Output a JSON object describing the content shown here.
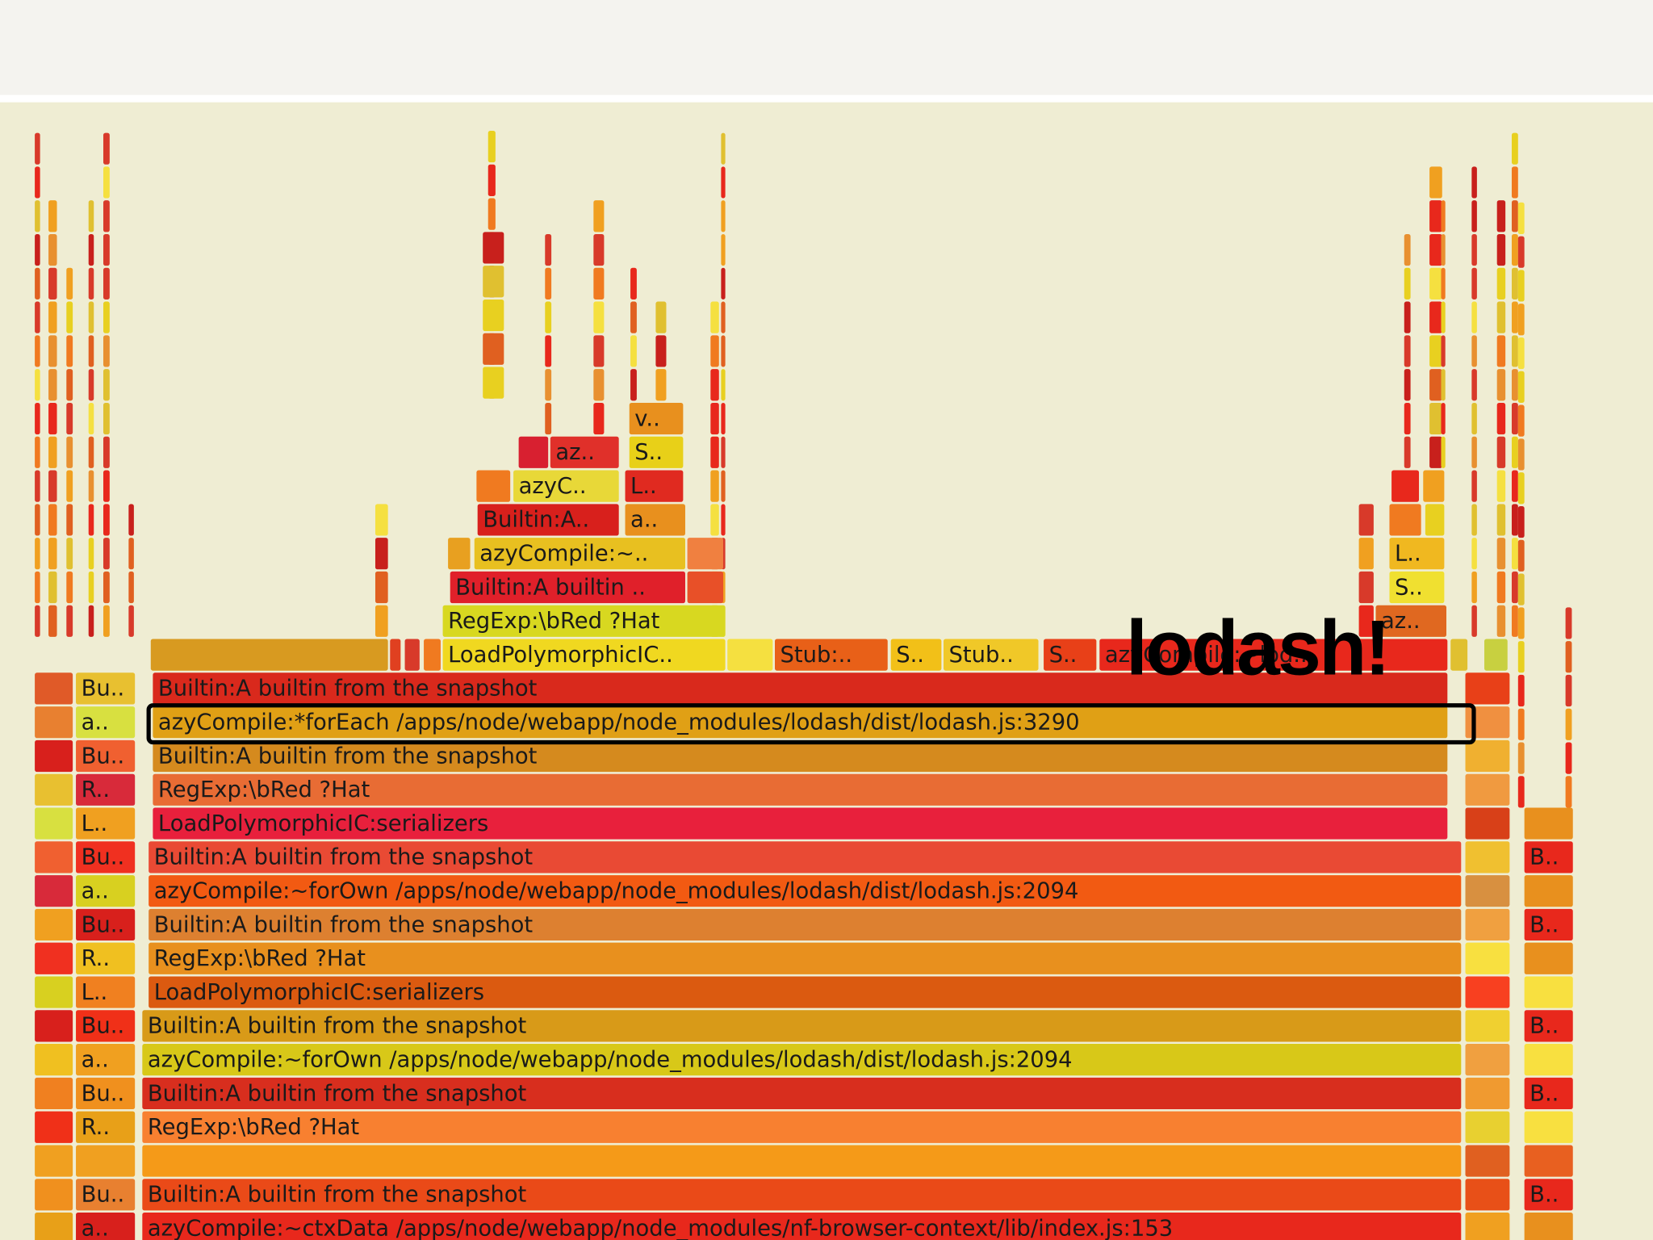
{
  "annotation": "lodash!",
  "frames": [
    {
      "label": "v.."
    },
    {
      "label": "az.."
    },
    {
      "label": "S.."
    },
    {
      "label": "azyC.."
    },
    {
      "label": "L.."
    },
    {
      "label": "Builtin:A.."
    },
    {
      "label": "a.."
    },
    {
      "label": "azyCompile:~.."
    },
    {
      "label": "Builtin:A builtin .."
    },
    {
      "label": "RegExp:\\bRed ?Hat"
    },
    {
      "label": "LoadPolymorphicIC.."
    },
    {
      "label": "Stub:.."
    },
    {
      "label": "S.."
    },
    {
      "label": "Stub.."
    },
    {
      "label": "S.."
    },
    {
      "label": "azyCompile:~lod.."
    },
    {
      "label": "L.."
    },
    {
      "label": "S.."
    },
    {
      "label": "az.."
    }
  ],
  "rows": [
    {
      "left": "Bu..",
      "label": "Builtin:A builtin from the snapshot"
    },
    {
      "left": "a..",
      "label": "azyCompile:*forEach /apps/node/webapp/node_modules/lodash/dist/lodash.js:3290"
    },
    {
      "left": "Bu..",
      "label": "Builtin:A builtin from the snapshot"
    },
    {
      "left": "R..",
      "label": "RegExp:\\bRed ?Hat"
    },
    {
      "left": "L..",
      "label": "LoadPolymorphicIC:serializers"
    },
    {
      "left": "Bu..",
      "label": "Builtin:A builtin from the snapshot",
      "right": "B.."
    },
    {
      "left": "a..",
      "label": "azyCompile:~forOwn /apps/node/webapp/node_modules/lodash/dist/lodash.js:2094"
    },
    {
      "left": "Bu..",
      "label": "Builtin:A builtin from the snapshot",
      "right": "B.."
    },
    {
      "left": "R..",
      "label": "RegExp:\\bRed ?Hat"
    },
    {
      "left": "L..",
      "label": "LoadPolymorphicIC:serializers"
    },
    {
      "left": "Bu..",
      "label": "Builtin:A builtin from the snapshot",
      "right": "B.."
    },
    {
      "left": "a..",
      "label": "azyCompile:~forOwn /apps/node/webapp/node_modules/lodash/dist/lodash.js:2094"
    },
    {
      "left": "Bu..",
      "label": "Builtin:A builtin from the snapshot",
      "right": "B.."
    },
    {
      "left": "R..",
      "label": "RegExp:\\bRed ?Hat"
    },
    {
      "left": "Bu..",
      "label": "Builtin:A builtin from the snapshot",
      "right": "B.."
    },
    {
      "left": "a..",
      "label": "azyCompile:~ctxData /apps/node/webapp/node_modules/nf-browser-context/lib/index.js:153"
    }
  ]
}
